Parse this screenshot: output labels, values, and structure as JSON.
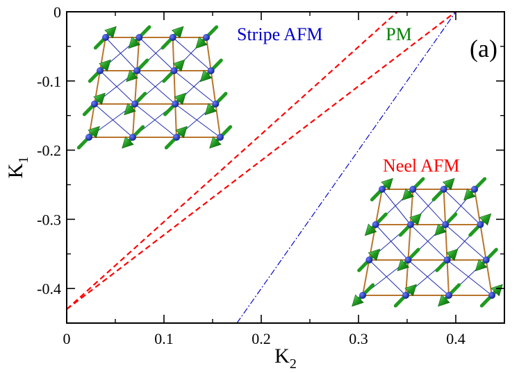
{
  "chart_data": {
    "type": "line",
    "title": "",
    "xlabel": "K",
    "xlabel_sub": "2",
    "ylabel": "K",
    "ylabel_sub": "1",
    "xlim": [
      0,
      0.45
    ],
    "ylim": [
      -0.45,
      0
    ],
    "xticks": [
      0,
      0.1,
      0.2,
      0.3,
      0.4
    ],
    "xtick_labels": [
      "0",
      "0.1",
      "0.2",
      "0.3",
      "0.4"
    ],
    "yticks": [
      0,
      -0.1,
      -0.2,
      -0.3,
      -0.4
    ],
    "ytick_labels": [
      "0",
      "-0.1",
      "-0.2",
      "-0.3",
      "-0.4"
    ],
    "grid": false,
    "panel_label": "(a)",
    "series": [
      {
        "style": "dashed",
        "color": "#ff0000",
        "x": [
          0,
          0.34
        ],
        "y": [
          -0.43,
          0
        ]
      },
      {
        "style": "dashed",
        "color": "#ff0000",
        "x": [
          0,
          0.4
        ],
        "y": [
          -0.43,
          0
        ]
      },
      {
        "style": "dashdot",
        "color": "#0000cc",
        "x": [
          0.175,
          0.4
        ],
        "y": [
          -0.45,
          0
        ]
      }
    ],
    "annotations": [
      {
        "text": "Stripe AFM",
        "color": "#0000cc",
        "x": 0.175,
        "y": -0.035
      },
      {
        "text": "PM",
        "color": "#008000",
        "x": 0.328,
        "y": -0.035
      },
      {
        "text": "Neel AFM",
        "color": "#ff0000",
        "x": 0.325,
        "y": -0.225
      }
    ],
    "insets": [
      {
        "name": "stripe-afm-lattice",
        "pattern": "stripe"
      },
      {
        "name": "neel-afm-lattice",
        "pattern": "neel"
      }
    ]
  },
  "colors": {
    "bond": "#b8742a",
    "diagonal": "#1f2bb0",
    "atom": "#0a1f8a",
    "spin": "#1f9a1f"
  }
}
